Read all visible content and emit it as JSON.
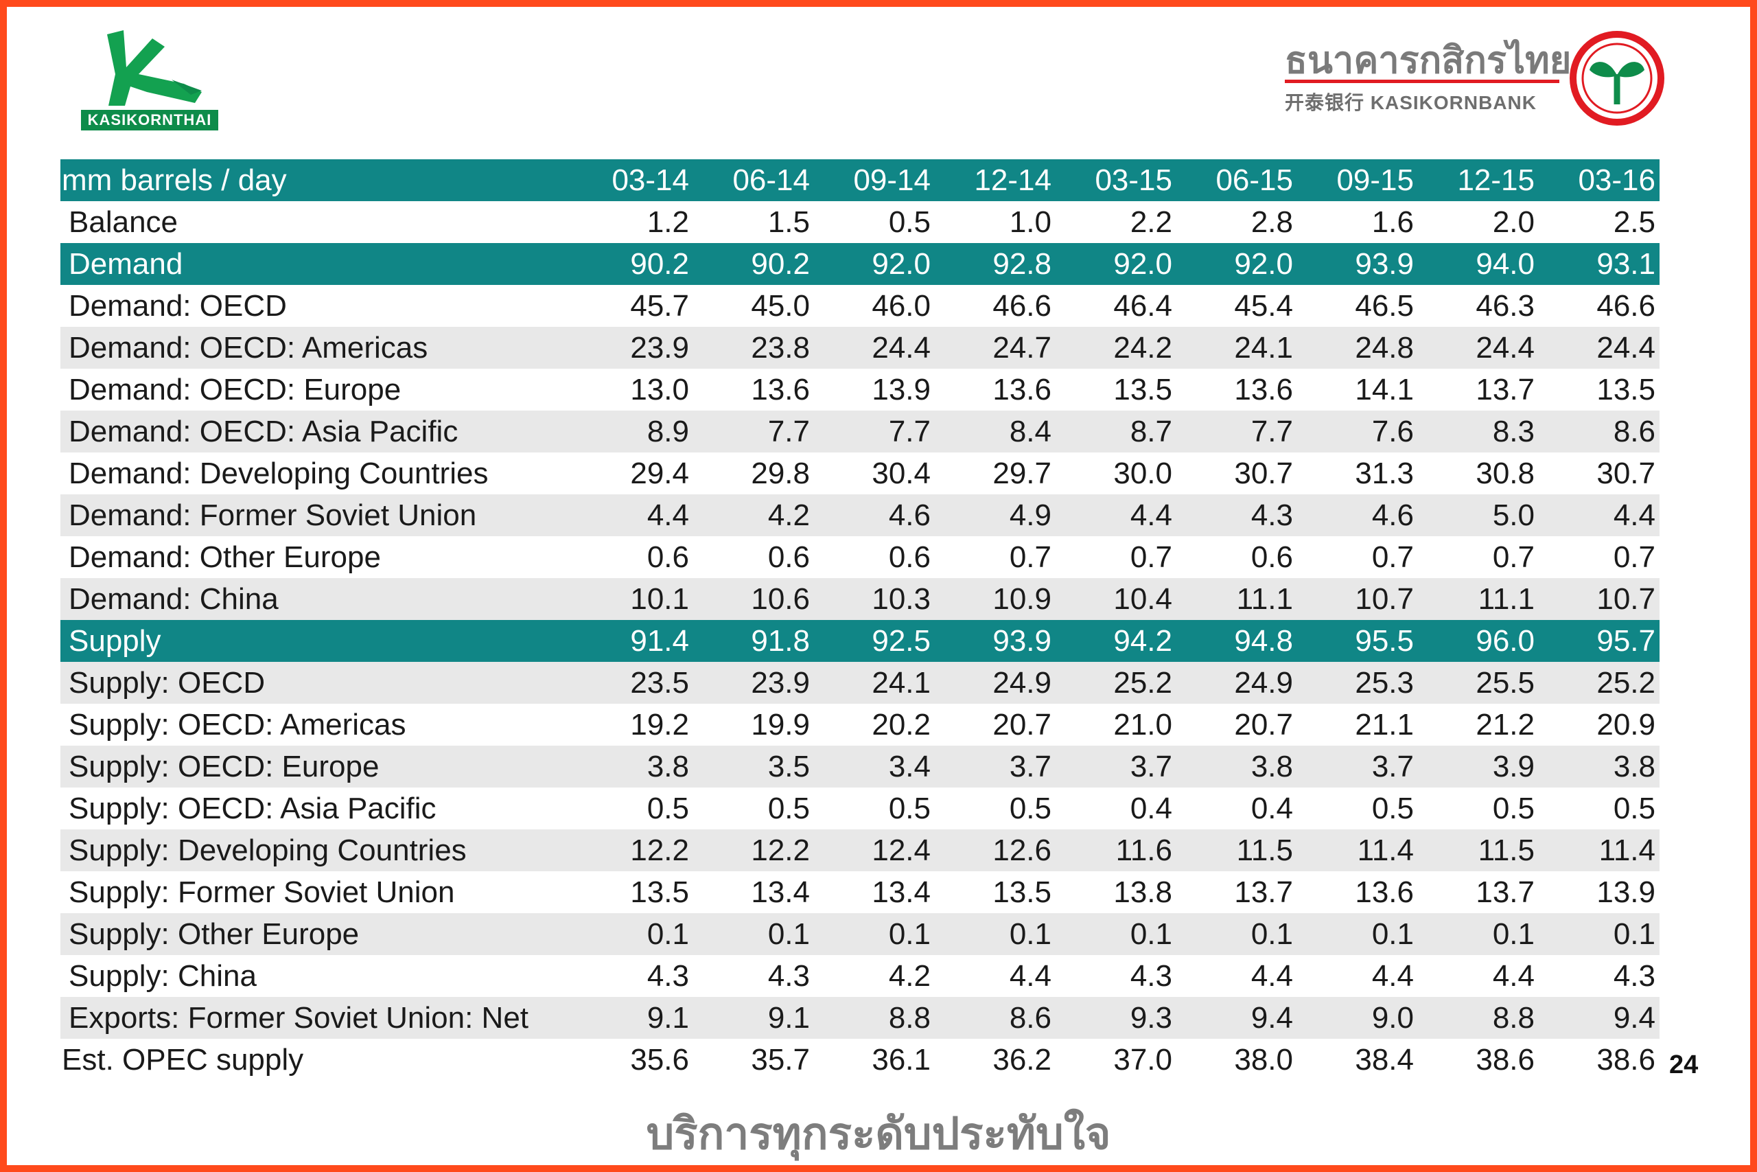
{
  "branding": {
    "left_logo_text": "KASIKORNTHAI",
    "right_logo_thai": "ธนาคารกสิกรไทย",
    "right_logo_english": "开泰银行 KASIKORNBANK",
    "brand_green": "#0e8c4a",
    "brand_red": "#e11b22",
    "frame_color": "#ff4a1c"
  },
  "table": {
    "unit_label": "mm barrels / day",
    "header_color": "#108686",
    "periods": [
      "03-14",
      "06-14",
      "09-14",
      "12-14",
      "03-15",
      "06-15",
      "09-15",
      "12-15",
      "03-16"
    ],
    "rows": [
      {
        "label": "Balance",
        "values": [
          "1.2",
          "1.5",
          "0.5",
          "1.0",
          "2.2",
          "2.8",
          "1.6",
          "2.0",
          "2.5"
        ]
      },
      {
        "label": "Demand",
        "values": [
          "90.2",
          "90.2",
          "92.0",
          "92.8",
          "92.0",
          "92.0",
          "93.9",
          "94.0",
          "93.1"
        ]
      },
      {
        "label": "Demand: OECD",
        "values": [
          "45.7",
          "45.0",
          "46.0",
          "46.6",
          "46.4",
          "45.4",
          "46.5",
          "46.3",
          "46.6"
        ]
      },
      {
        "label": "Demand: OECD: Americas",
        "values": [
          "23.9",
          "23.8",
          "24.4",
          "24.7",
          "24.2",
          "24.1",
          "24.8",
          "24.4",
          "24.4"
        ]
      },
      {
        "label": "Demand: OECD: Europe",
        "values": [
          "13.0",
          "13.6",
          "13.9",
          "13.6",
          "13.5",
          "13.6",
          "14.1",
          "13.7",
          "13.5"
        ]
      },
      {
        "label": "Demand: OECD: Asia Pacific",
        "values": [
          "8.9",
          "7.7",
          "7.7",
          "8.4",
          "8.7",
          "7.7",
          "7.6",
          "8.3",
          "8.6"
        ]
      },
      {
        "label": "Demand: Developing Countries",
        "values": [
          "29.4",
          "29.8",
          "30.4",
          "29.7",
          "30.0",
          "30.7",
          "31.3",
          "30.8",
          "30.7"
        ]
      },
      {
        "label": "Demand: Former Soviet Union",
        "values": [
          "4.4",
          "4.2",
          "4.6",
          "4.9",
          "4.4",
          "4.3",
          "4.6",
          "5.0",
          "4.4"
        ]
      },
      {
        "label": "Demand: Other Europe",
        "values": [
          "0.6",
          "0.6",
          "0.6",
          "0.7",
          "0.7",
          "0.6",
          "0.7",
          "0.7",
          "0.7"
        ]
      },
      {
        "label": "Demand: China",
        "values": [
          "10.1",
          "10.6",
          "10.3",
          "10.9",
          "10.4",
          "11.1",
          "10.7",
          "11.1",
          "10.7"
        ]
      },
      {
        "label": "Supply",
        "values": [
          "91.4",
          "91.8",
          "92.5",
          "93.9",
          "94.2",
          "94.8",
          "95.5",
          "96.0",
          "95.7"
        ]
      },
      {
        "label": "Supply: OECD",
        "values": [
          "23.5",
          "23.9",
          "24.1",
          "24.9",
          "25.2",
          "24.9",
          "25.3",
          "25.5",
          "25.2"
        ]
      },
      {
        "label": "Supply: OECD: Americas",
        "values": [
          "19.2",
          "19.9",
          "20.2",
          "20.7",
          "21.0",
          "20.7",
          "21.1",
          "21.2",
          "20.9"
        ]
      },
      {
        "label": "Supply: OECD: Europe",
        "values": [
          "3.8",
          "3.5",
          "3.4",
          "3.7",
          "3.7",
          "3.8",
          "3.7",
          "3.9",
          "3.8"
        ]
      },
      {
        "label": "Supply: OECD: Asia Pacific",
        "values": [
          "0.5",
          "0.5",
          "0.5",
          "0.5",
          "0.4",
          "0.4",
          "0.5",
          "0.5",
          "0.5"
        ]
      },
      {
        "label": "Supply: Developing Countries",
        "values": [
          "12.2",
          "12.2",
          "12.4",
          "12.6",
          "11.6",
          "11.5",
          "11.4",
          "11.5",
          "11.4"
        ]
      },
      {
        "label": "Supply: Former Soviet Union",
        "values": [
          "13.5",
          "13.4",
          "13.4",
          "13.5",
          "13.8",
          "13.7",
          "13.6",
          "13.7",
          "13.9"
        ]
      },
      {
        "label": "Supply: Other Europe",
        "values": [
          "0.1",
          "0.1",
          "0.1",
          "0.1",
          "0.1",
          "0.1",
          "0.1",
          "0.1",
          "0.1"
        ]
      },
      {
        "label": "Supply: China",
        "values": [
          "4.3",
          "4.3",
          "4.2",
          "4.4",
          "4.3",
          "4.4",
          "4.4",
          "4.4",
          "4.3"
        ]
      },
      {
        "label": "Exports: Former Soviet Union: Net",
        "values": [
          "9.1",
          "9.1",
          "8.8",
          "8.6",
          "9.3",
          "9.4",
          "9.0",
          "8.8",
          "9.4"
        ]
      },
      {
        "label": "Est. OPEC supply",
        "values": [
          "35.6",
          "35.7",
          "36.1",
          "36.2",
          "37.0",
          "38.0",
          "38.4",
          "38.6",
          "38.6"
        ]
      }
    ]
  },
  "page_number": "24",
  "footer_slogan": "บริการทุกระดับประทับใจ"
}
